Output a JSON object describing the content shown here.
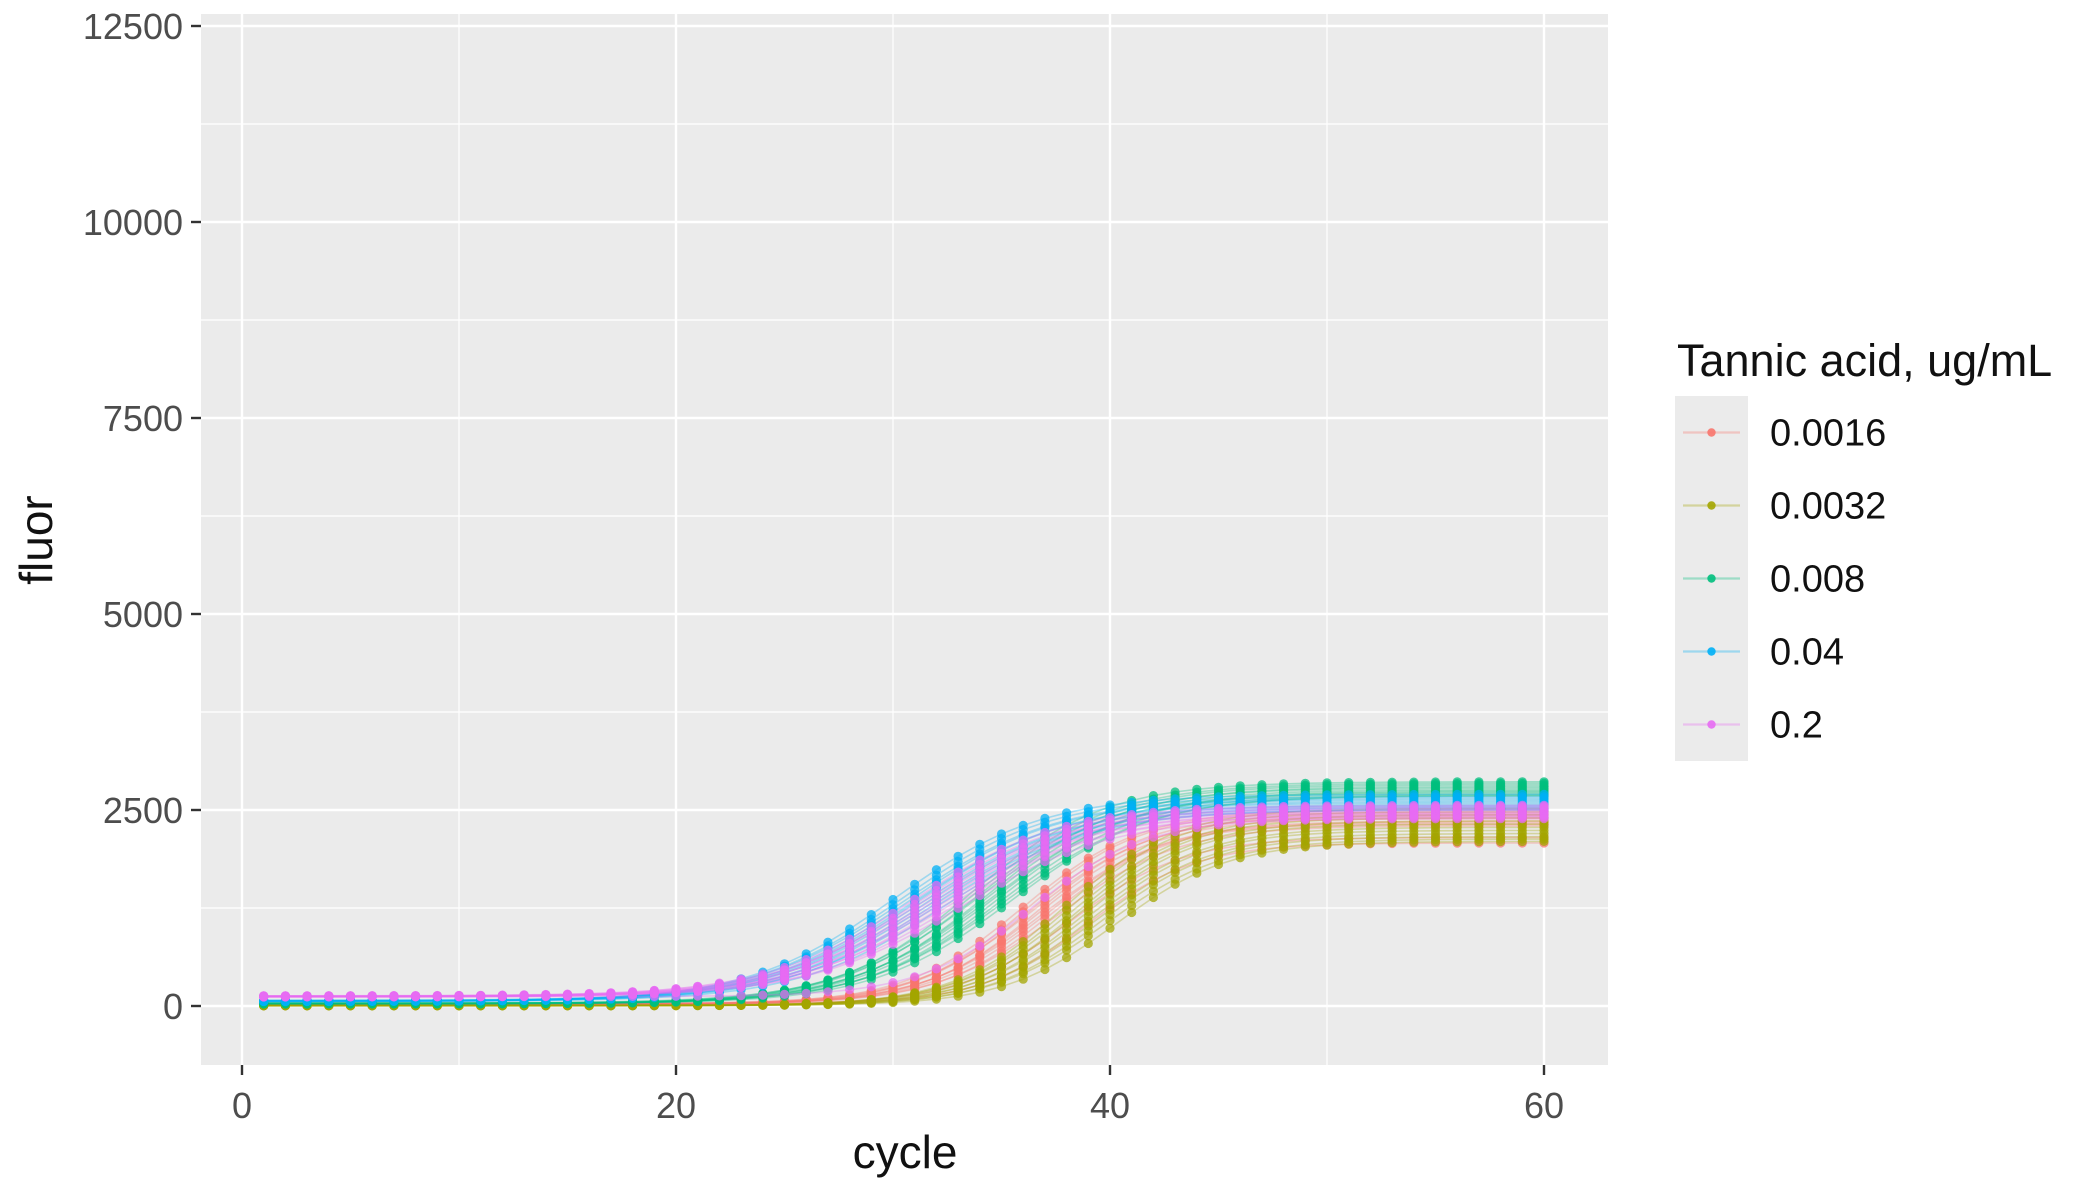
{
  "figure_type": "ggplot-style qPCR amplification curve plot",
  "axes": {
    "x": {
      "label": "cycle",
      "major_ticks": [
        0,
        20,
        40,
        60
      ],
      "minor_ticks": [
        10,
        30,
        50
      ],
      "data_range": [
        1,
        60
      ]
    },
    "y": {
      "label": "fluor",
      "major_ticks": [
        0,
        2500,
        5000,
        7500,
        10000,
        12500
      ],
      "minor_ticks": [
        1250,
        3750,
        6250,
        8750,
        11250
      ],
      "display_range": [
        -750,
        12400
      ]
    }
  },
  "legend": {
    "title": "Tannic acid, ug/mL",
    "entries": [
      {
        "label": "0.0016",
        "color": "#F8766D"
      },
      {
        "label": "0.0032",
        "color": "#A3A500"
      },
      {
        "label": "0.008",
        "color": "#00BF7D"
      },
      {
        "label": "0.04",
        "color": "#00B0F6"
      },
      {
        "label": "0.2",
        "color": "#E76BF3"
      }
    ]
  },
  "chart_data": {
    "type": "line",
    "title": "",
    "xlabel": "cycle",
    "ylabel": "fluor",
    "x": {
      "from": 1,
      "to": 60,
      "step": 1
    },
    "ylim": [
      -750,
      12400
    ],
    "grid": "on",
    "legend_position": "right",
    "model": "fluor(cycle) = baseline + (plateau - baseline) / (1 + exp(-(cycle - midpoint)/slope))",
    "replicate_params_format": [
      "midpoint_cycle",
      "slope_cycles",
      "baseline_fluor",
      "plateau_fluor"
    ],
    "series": [
      {
        "name": "0.0016",
        "color": "#F8766D",
        "replicates": [
          [
            36.0,
            2.7,
            24,
            2500
          ],
          [
            36.2,
            2.6,
            28,
            2470
          ],
          [
            36.4,
            2.7,
            22,
            2450
          ],
          [
            36.5,
            2.8,
            30,
            2430
          ],
          [
            36.7,
            2.6,
            26,
            2410
          ],
          [
            36.8,
            2.7,
            20,
            2390
          ],
          [
            37.0,
            2.8,
            27,
            2360
          ],
          [
            37.1,
            2.7,
            23,
            2340
          ],
          [
            37.3,
            2.6,
            29,
            2320
          ],
          [
            37.6,
            2.8,
            25,
            2300
          ],
          [
            38.2,
            2.6,
            21,
            2150
          ],
          [
            39.0,
            2.5,
            26,
            2080
          ]
        ]
      },
      {
        "name": "0.0032",
        "color": "#A3A500",
        "replicates": [
          [
            37.9,
            2.6,
            4,
            2520
          ],
          [
            38.1,
            2.6,
            8,
            2480
          ],
          [
            38.3,
            2.7,
            2,
            2440
          ],
          [
            38.5,
            2.6,
            6,
            2400
          ],
          [
            38.6,
            2.7,
            10,
            2360
          ],
          [
            38.8,
            2.6,
            5,
            2320
          ],
          [
            39.0,
            2.7,
            7,
            2280
          ],
          [
            39.2,
            2.6,
            3,
            2240
          ],
          [
            39.4,
            2.7,
            9,
            2200
          ],
          [
            39.6,
            2.6,
            5,
            2160
          ],
          [
            39.9,
            2.7,
            8,
            2130
          ],
          [
            40.3,
            2.6,
            6,
            2100
          ]
        ]
      },
      {
        "name": "0.008",
        "color": "#00BF7D",
        "replicates": [
          [
            33.6,
            3.1,
            26,
            2860
          ],
          [
            33.8,
            3.2,
            34,
            2840
          ],
          [
            34.0,
            3.2,
            30,
            2820
          ],
          [
            34.1,
            3.3,
            38,
            2800
          ],
          [
            34.3,
            3.1,
            32,
            2780
          ],
          [
            34.4,
            3.2,
            28,
            2760
          ],
          [
            34.6,
            3.3,
            36,
            2745
          ],
          [
            34.7,
            3.2,
            33,
            2730
          ],
          [
            34.9,
            3.1,
            37,
            2715
          ],
          [
            35.1,
            3.2,
            31,
            2700
          ],
          [
            35.3,
            3.3,
            35,
            2690
          ],
          [
            35.5,
            3.2,
            29,
            2680
          ]
        ]
      },
      {
        "name": "0.04",
        "color": "#00B0F6",
        "replicates": [
          [
            30.1,
            3.4,
            56,
            2700
          ],
          [
            30.4,
            3.4,
            66,
            2670
          ],
          [
            30.6,
            3.5,
            58,
            2650
          ],
          [
            30.8,
            3.4,
            70,
            2630
          ],
          [
            31.0,
            3.5,
            62,
            2610
          ],
          [
            31.1,
            3.4,
            72,
            2590
          ],
          [
            31.3,
            3.5,
            64,
            2570
          ],
          [
            31.5,
            3.4,
            67,
            2555
          ],
          [
            31.7,
            3.5,
            60,
            2540
          ],
          [
            31.9,
            3.4,
            63,
            2525
          ],
          [
            32.1,
            3.5,
            68,
            2510
          ],
          [
            32.4,
            3.4,
            61,
            2500
          ]
        ]
      },
      {
        "name": "0.2",
        "color": "#E76BF3",
        "replicates": [
          [
            30.9,
            3.4,
            126,
            2560
          ],
          [
            31.2,
            3.4,
            118,
            2545
          ],
          [
            31.4,
            3.5,
            130,
            2530
          ],
          [
            31.6,
            3.4,
            122,
            2515
          ],
          [
            31.8,
            3.5,
            127,
            2500
          ],
          [
            32.0,
            3.4,
            115,
            2485
          ],
          [
            32.2,
            3.5,
            124,
            2470
          ],
          [
            32.4,
            3.4,
            119,
            2455
          ],
          [
            32.6,
            3.5,
            128,
            2440
          ],
          [
            32.8,
            3.4,
            121,
            2425
          ],
          [
            33.1,
            3.5,
            116,
            2410
          ],
          [
            36.4,
            2.6,
            120,
            2390
          ]
        ]
      }
    ]
  },
  "style": {
    "panel_background": "#EBEBEB",
    "legend_key_background": "#EBEBEB",
    "gridline_color": "#FFFFFF",
    "tick_mark_color": "#333333",
    "tick_label_color": "#4D4D4D",
    "axis_title_color": "#111111",
    "line_opacity": 0.33,
    "point_opacity": 0.75
  }
}
